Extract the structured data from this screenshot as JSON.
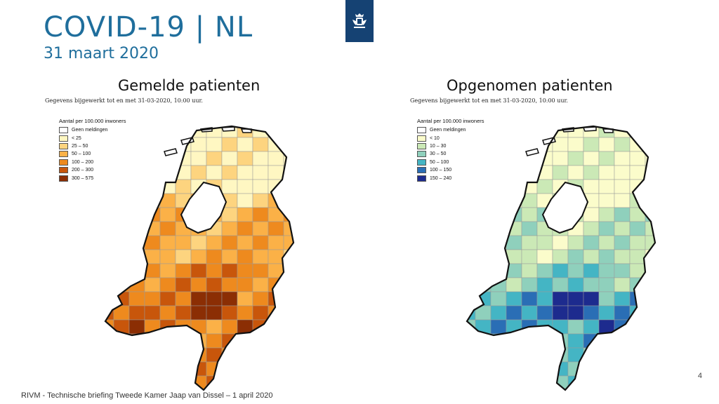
{
  "header": {
    "title": "COVID-19 | NL",
    "date": "31 maart 2020"
  },
  "colors": {
    "brand": "#1f6e9c",
    "logo_bg": "#154273"
  },
  "logo": {
    "icon": "coat-of-arms-icon"
  },
  "left_map": {
    "title": "Gemelde patienten",
    "note": "Gegevens bijgewerkt tot en met 31-03-2020, 10:00 uur.",
    "legend_title": "Aantal per 100.000 inwoners",
    "legend": [
      {
        "label": "Geen meldingen",
        "color": "#ffffff"
      },
      {
        "label": "< 25",
        "color": "#fff7c2"
      },
      {
        "label": "25 – 50",
        "color": "#fdd47f"
      },
      {
        "label": "50 – 100",
        "color": "#fbb147"
      },
      {
        "label": "100 – 200",
        "color": "#ee8a1e"
      },
      {
        "label": "200 – 300",
        "color": "#c8560b"
      },
      {
        "label": "300 – 575",
        "color": "#8b2e04"
      }
    ]
  },
  "right_map": {
    "title": "Opgenomen patienten",
    "note": "Gegevens bijgewerkt tot en met 31-03-2020, 10:00 uur.",
    "legend_title": "Aantal per 100.000 inwoners",
    "legend": [
      {
        "label": "Geen meldingen",
        "color": "#ffffff"
      },
      {
        "label": "< 10",
        "color": "#fbfccb"
      },
      {
        "label": "10 – 30",
        "color": "#cbe9b6"
      },
      {
        "label": "30 – 50",
        "color": "#8fd0bc"
      },
      {
        "label": "50 – 100",
        "color": "#44b5c4"
      },
      {
        "label": "100 – 150",
        "color": "#2a6eb5"
      },
      {
        "label": "150 – 240",
        "color": "#1d2b8e"
      }
    ]
  },
  "footer": {
    "source": "RIVM - Technische briefing Tweede Kamer Jaap van Dissel – 1 april 2020",
    "page": "4"
  }
}
